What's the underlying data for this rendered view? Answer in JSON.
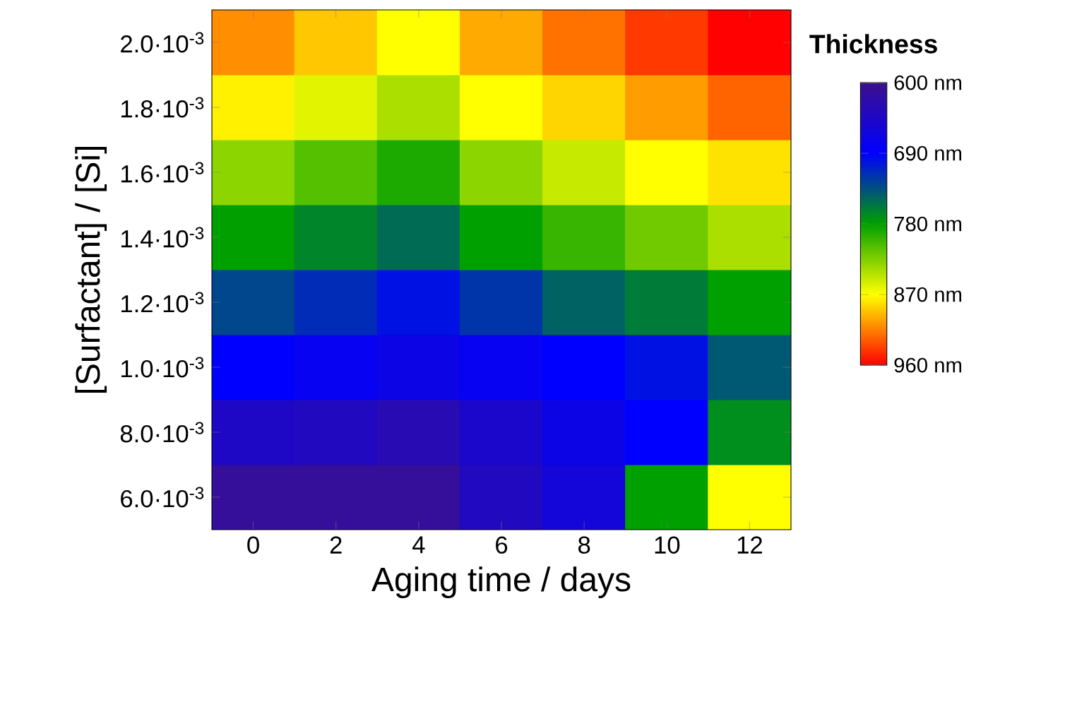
{
  "chart_data": {
    "type": "heatmap",
    "xlabel": "Aging time / days",
    "ylabel": "[Surfactant] / [Si]",
    "clabel": "Thickness",
    "categories": [
      "0",
      "2",
      "4",
      "6",
      "8",
      "10",
      "12"
    ],
    "y_categories": [
      "2.0·10$^{-3}$",
      "1.8·10$^{-3}$",
      "1.6·10$^{-3}$",
      "1.4·10$^{-3}$",
      "1.2·10$^{-3}$",
      "1.0·10$^{-3}$",
      "8.0·10$^{-3}$",
      "6.0·10$^{-3}$"
    ],
    "cells": [
      [
        910,
        890,
        870,
        900,
        920,
        940,
        960
      ],
      [
        875,
        860,
        840,
        870,
        885,
        905,
        925
      ],
      [
        830,
        810,
        790,
        830,
        850,
        870,
        880
      ],
      [
        780,
        765,
        750,
        780,
        800,
        820,
        840
      ],
      [
        730,
        715,
        700,
        720,
        745,
        760,
        780
      ],
      [
        690,
        680,
        670,
        680,
        690,
        700,
        740
      ],
      [
        645,
        640,
        630,
        650,
        670,
        690,
        770
      ],
      [
        610,
        610,
        610,
        640,
        660,
        780,
        870
      ]
    ],
    "clim": [
      600,
      960
    ],
    "cticks": [
      {
        "value": 600,
        "label": "600 nm"
      },
      {
        "value": 690,
        "label": "690 nm"
      },
      {
        "value": 780,
        "label": "780 nm"
      },
      {
        "value": 870,
        "label": "870 nm"
      },
      {
        "value": 960,
        "label": "960 nm"
      }
    ]
  }
}
